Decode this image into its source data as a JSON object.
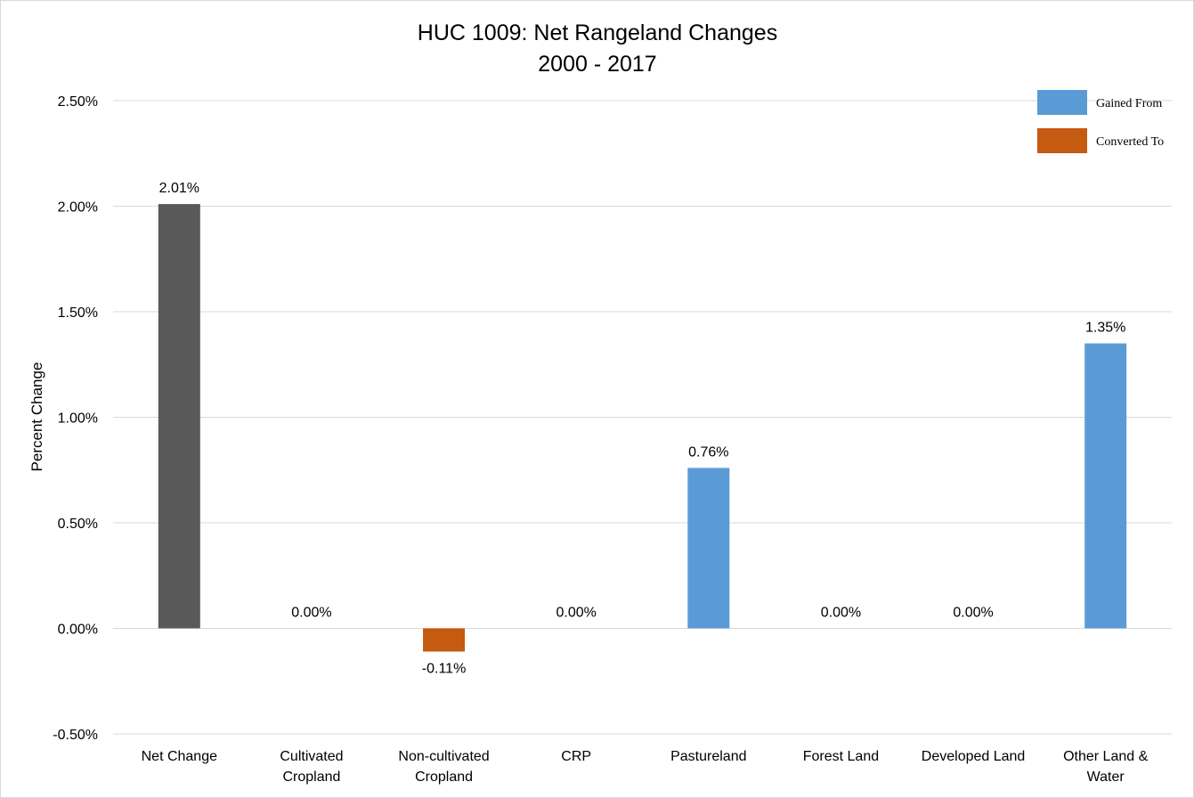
{
  "chart_data": {
    "type": "bar",
    "title": [
      "HUC 1009: Net Rangeland Changes",
      "2000 - 2017"
    ],
    "ylabel": "Percent Change",
    "xlabel": "",
    "ylim": [
      -0.5,
      2.5
    ],
    "ytick_step": 0.5,
    "ytick_labels": [
      "-0.50%",
      "0.00%",
      "0.50%",
      "1.00%",
      "1.50%",
      "2.00%",
      "2.50%"
    ],
    "grid": true,
    "legend_position": "top-right",
    "categories": [
      [
        "Net Change"
      ],
      [
        "Cultivated",
        "Cropland"
      ],
      [
        "Non-cultivated",
        "Cropland"
      ],
      [
        "CRP"
      ],
      [
        "Pastureland"
      ],
      [
        "Forest Land"
      ],
      [
        "Developed Land"
      ],
      [
        "Other Land &",
        "Water"
      ]
    ],
    "values": [
      2.01,
      0.0,
      -0.11,
      0.0,
      0.76,
      0.0,
      0.0,
      1.35
    ],
    "value_labels": [
      "2.01%",
      "0.00%",
      "-0.11%",
      "0.00%",
      "0.76%",
      "0.00%",
      "0.00%",
      "1.35%"
    ],
    "bar_kind": [
      "net",
      "converted",
      "converted",
      "gained",
      "gained",
      "gained",
      "gained",
      "gained"
    ],
    "colors": {
      "net": "#595959",
      "gained": "#5b9bd5",
      "converted": "#c55a11",
      "grid": "#d9d9d9"
    },
    "legend": [
      {
        "name": "Gained From",
        "kind": "gained"
      },
      {
        "name": "Converted To",
        "kind": "converted"
      }
    ]
  }
}
